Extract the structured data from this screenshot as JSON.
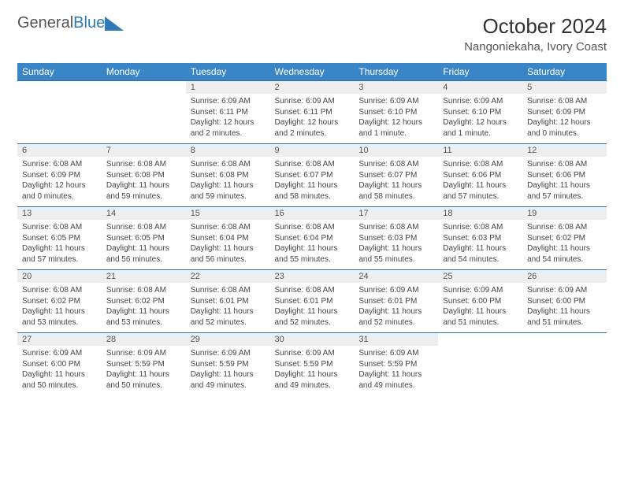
{
  "logo": {
    "word1": "General",
    "word2": "Blue"
  },
  "title": "October 2024",
  "location": "Nangoniekaha, Ivory Coast",
  "colors": {
    "header_bg": "#3a85c6",
    "header_text": "#ffffff",
    "daynum_bg": "#eeeeee",
    "row_border": "#2f6da5",
    "logo_blue": "#2f79b9"
  },
  "weekdays": [
    "Sunday",
    "Monday",
    "Tuesday",
    "Wednesday",
    "Thursday",
    "Friday",
    "Saturday"
  ],
  "weeks": [
    [
      {
        "empty": true
      },
      {
        "empty": true
      },
      {
        "num": "1",
        "sunrise": "Sunrise: 6:09 AM",
        "sunset": "Sunset: 6:11 PM",
        "daylight": "Daylight: 12 hours and 2 minutes."
      },
      {
        "num": "2",
        "sunrise": "Sunrise: 6:09 AM",
        "sunset": "Sunset: 6:11 PM",
        "daylight": "Daylight: 12 hours and 2 minutes."
      },
      {
        "num": "3",
        "sunrise": "Sunrise: 6:09 AM",
        "sunset": "Sunset: 6:10 PM",
        "daylight": "Daylight: 12 hours and 1 minute."
      },
      {
        "num": "4",
        "sunrise": "Sunrise: 6:09 AM",
        "sunset": "Sunset: 6:10 PM",
        "daylight": "Daylight: 12 hours and 1 minute."
      },
      {
        "num": "5",
        "sunrise": "Sunrise: 6:08 AM",
        "sunset": "Sunset: 6:09 PM",
        "daylight": "Daylight: 12 hours and 0 minutes."
      }
    ],
    [
      {
        "num": "6",
        "sunrise": "Sunrise: 6:08 AM",
        "sunset": "Sunset: 6:09 PM",
        "daylight": "Daylight: 12 hours and 0 minutes."
      },
      {
        "num": "7",
        "sunrise": "Sunrise: 6:08 AM",
        "sunset": "Sunset: 6:08 PM",
        "daylight": "Daylight: 11 hours and 59 minutes."
      },
      {
        "num": "8",
        "sunrise": "Sunrise: 6:08 AM",
        "sunset": "Sunset: 6:08 PM",
        "daylight": "Daylight: 11 hours and 59 minutes."
      },
      {
        "num": "9",
        "sunrise": "Sunrise: 6:08 AM",
        "sunset": "Sunset: 6:07 PM",
        "daylight": "Daylight: 11 hours and 58 minutes."
      },
      {
        "num": "10",
        "sunrise": "Sunrise: 6:08 AM",
        "sunset": "Sunset: 6:07 PM",
        "daylight": "Daylight: 11 hours and 58 minutes."
      },
      {
        "num": "11",
        "sunrise": "Sunrise: 6:08 AM",
        "sunset": "Sunset: 6:06 PM",
        "daylight": "Daylight: 11 hours and 57 minutes."
      },
      {
        "num": "12",
        "sunrise": "Sunrise: 6:08 AM",
        "sunset": "Sunset: 6:06 PM",
        "daylight": "Daylight: 11 hours and 57 minutes."
      }
    ],
    [
      {
        "num": "13",
        "sunrise": "Sunrise: 6:08 AM",
        "sunset": "Sunset: 6:05 PM",
        "daylight": "Daylight: 11 hours and 57 minutes."
      },
      {
        "num": "14",
        "sunrise": "Sunrise: 6:08 AM",
        "sunset": "Sunset: 6:05 PM",
        "daylight": "Daylight: 11 hours and 56 minutes."
      },
      {
        "num": "15",
        "sunrise": "Sunrise: 6:08 AM",
        "sunset": "Sunset: 6:04 PM",
        "daylight": "Daylight: 11 hours and 56 minutes."
      },
      {
        "num": "16",
        "sunrise": "Sunrise: 6:08 AM",
        "sunset": "Sunset: 6:04 PM",
        "daylight": "Daylight: 11 hours and 55 minutes."
      },
      {
        "num": "17",
        "sunrise": "Sunrise: 6:08 AM",
        "sunset": "Sunset: 6:03 PM",
        "daylight": "Daylight: 11 hours and 55 minutes."
      },
      {
        "num": "18",
        "sunrise": "Sunrise: 6:08 AM",
        "sunset": "Sunset: 6:03 PM",
        "daylight": "Daylight: 11 hours and 54 minutes."
      },
      {
        "num": "19",
        "sunrise": "Sunrise: 6:08 AM",
        "sunset": "Sunset: 6:02 PM",
        "daylight": "Daylight: 11 hours and 54 minutes."
      }
    ],
    [
      {
        "num": "20",
        "sunrise": "Sunrise: 6:08 AM",
        "sunset": "Sunset: 6:02 PM",
        "daylight": "Daylight: 11 hours and 53 minutes."
      },
      {
        "num": "21",
        "sunrise": "Sunrise: 6:08 AM",
        "sunset": "Sunset: 6:02 PM",
        "daylight": "Daylight: 11 hours and 53 minutes."
      },
      {
        "num": "22",
        "sunrise": "Sunrise: 6:08 AM",
        "sunset": "Sunset: 6:01 PM",
        "daylight": "Daylight: 11 hours and 52 minutes."
      },
      {
        "num": "23",
        "sunrise": "Sunrise: 6:08 AM",
        "sunset": "Sunset: 6:01 PM",
        "daylight": "Daylight: 11 hours and 52 minutes."
      },
      {
        "num": "24",
        "sunrise": "Sunrise: 6:09 AM",
        "sunset": "Sunset: 6:01 PM",
        "daylight": "Daylight: 11 hours and 52 minutes."
      },
      {
        "num": "25",
        "sunrise": "Sunrise: 6:09 AM",
        "sunset": "Sunset: 6:00 PM",
        "daylight": "Daylight: 11 hours and 51 minutes."
      },
      {
        "num": "26",
        "sunrise": "Sunrise: 6:09 AM",
        "sunset": "Sunset: 6:00 PM",
        "daylight": "Daylight: 11 hours and 51 minutes."
      }
    ],
    [
      {
        "num": "27",
        "sunrise": "Sunrise: 6:09 AM",
        "sunset": "Sunset: 6:00 PM",
        "daylight": "Daylight: 11 hours and 50 minutes."
      },
      {
        "num": "28",
        "sunrise": "Sunrise: 6:09 AM",
        "sunset": "Sunset: 5:59 PM",
        "daylight": "Daylight: 11 hours and 50 minutes."
      },
      {
        "num": "29",
        "sunrise": "Sunrise: 6:09 AM",
        "sunset": "Sunset: 5:59 PM",
        "daylight": "Daylight: 11 hours and 49 minutes."
      },
      {
        "num": "30",
        "sunrise": "Sunrise: 6:09 AM",
        "sunset": "Sunset: 5:59 PM",
        "daylight": "Daylight: 11 hours and 49 minutes."
      },
      {
        "num": "31",
        "sunrise": "Sunrise: 6:09 AM",
        "sunset": "Sunset: 5:59 PM",
        "daylight": "Daylight: 11 hours and 49 minutes."
      },
      {
        "empty": true
      },
      {
        "empty": true
      }
    ]
  ]
}
